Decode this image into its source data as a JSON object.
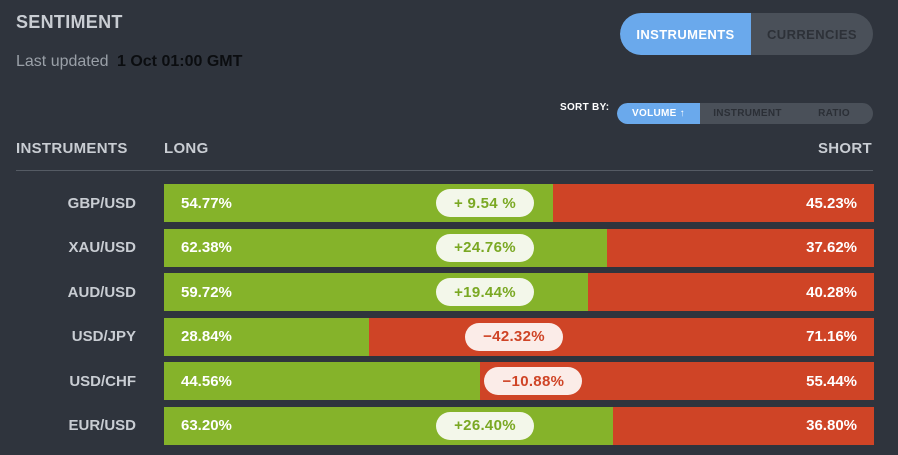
{
  "header": {
    "title": "SENTIMENT",
    "updated_label": "Last updated",
    "updated_time": "1 Oct 01:00 GMT"
  },
  "view_toggle": {
    "options": [
      "INSTRUMENTS",
      "CURRENCIES"
    ],
    "selected": "INSTRUMENTS"
  },
  "sort": {
    "label": "SORT BY:",
    "options": [
      "VOLUME ↑",
      "INSTRUMENT",
      "RATIO"
    ],
    "selected": "VOLUME ↑"
  },
  "table": {
    "columns": {
      "instruments": "INSTRUMENTS",
      "long": "LONG",
      "short": "SHORT"
    },
    "rows": [
      {
        "instrument": "GBP/USD",
        "long": "54.77%",
        "short": "45.23%",
        "diff": "+ 9.54 %",
        "long_pct": 54.77,
        "sign": "pos"
      },
      {
        "instrument": "XAU/USD",
        "long": "62.38%",
        "short": "37.62%",
        "diff": "+24.76%",
        "long_pct": 62.38,
        "sign": "pos"
      },
      {
        "instrument": "AUD/USD",
        "long": "59.72%",
        "short": "40.28%",
        "diff": "+19.44%",
        "long_pct": 59.72,
        "sign": "pos"
      },
      {
        "instrument": "USD/JPY",
        "long": "28.84%",
        "short": "71.16%",
        "diff": "−42.32%",
        "long_pct": 28.84,
        "sign": "neg"
      },
      {
        "instrument": "USD/CHF",
        "long": "44.56%",
        "short": "55.44%",
        "diff": "−10.88%",
        "long_pct": 44.56,
        "sign": "neg"
      },
      {
        "instrument": "EUR/USD",
        "long": "63.20%",
        "short": "36.80%",
        "diff": "+26.40%",
        "long_pct": 63.2,
        "sign": "pos"
      }
    ]
  },
  "colors": {
    "background": "#2f343d",
    "long": "#85b32a",
    "short": "#cf4426",
    "accent": "#6aa9ec"
  }
}
